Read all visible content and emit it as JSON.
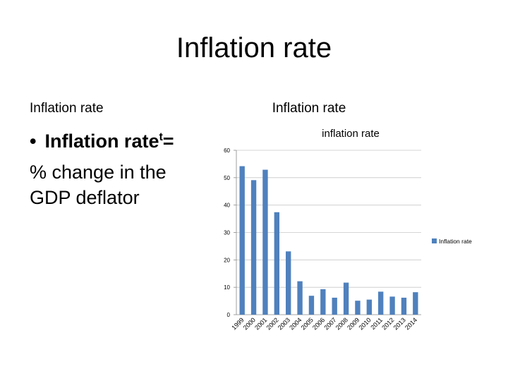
{
  "slide": {
    "title": "Inflation rate",
    "left_header": "Inflation rate",
    "right_header": "Inflation rate",
    "bullet_text": "Inflation rate",
    "bullet_superscript": "t",
    "bullet_suffix": "=",
    "body_text": "% change in the GDP deflator"
  },
  "chart_data": {
    "type": "bar",
    "title": "inflation rate",
    "xlabel": "",
    "ylabel": "",
    "categories": [
      "1999",
      "2000",
      "2001",
      "2002",
      "2003",
      "2004",
      "2005",
      "2006",
      "2007",
      "2008",
      "2009",
      "2010",
      "2011",
      "2012",
      "2013",
      "2014"
    ],
    "series": [
      {
        "name": "Inflation rate",
        "color": "#4F81BD",
        "values": [
          54.2,
          49.1,
          52.9,
          37.4,
          23.1,
          12.2,
          6.9,
          9.3,
          6.2,
          11.7,
          5.1,
          5.5,
          8.4,
          6.6,
          6.2,
          8.2
        ]
      }
    ],
    "ylim": [
      0,
      60
    ],
    "yticks": [
      0,
      10,
      20,
      30,
      40,
      50,
      60
    ],
    "grid": true,
    "legend": "right"
  }
}
